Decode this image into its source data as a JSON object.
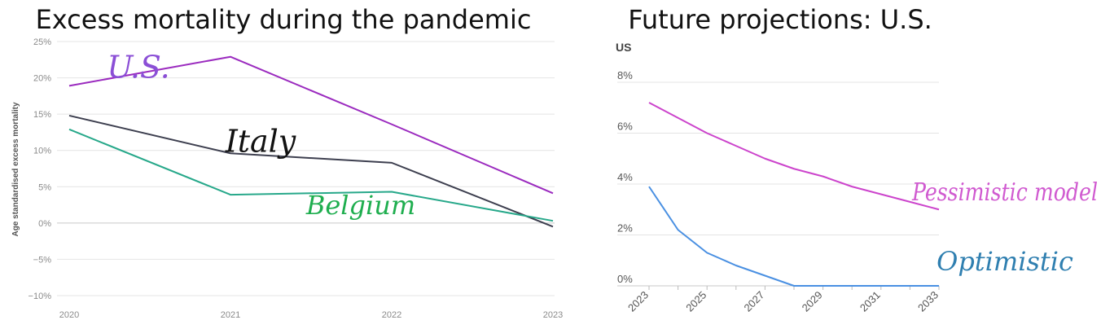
{
  "chart_data": [
    {
      "type": "line",
      "title": "Excess mortality during the pandemic",
      "ylabel": "Age standardised excess mortality",
      "x": [
        "2020",
        "2021",
        "2022",
        "2023"
      ],
      "ylim": [
        -10,
        25
      ],
      "yticks": [
        25,
        20,
        15,
        10,
        5,
        0,
        -5,
        -10
      ],
      "ytick_labels": [
        "25%",
        "20%",
        "15%",
        "10%",
        "5%",
        "0%",
        "−5%",
        "−10%"
      ],
      "grid": true,
      "series": [
        {
          "name": "U.S.",
          "values": [
            18.9,
            22.9,
            13.6,
            4.1
          ],
          "color": "#9b2bbf",
          "label_color": "#8b4fd6"
        },
        {
          "name": "Italy",
          "values": [
            14.8,
            9.6,
            8.3,
            -0.5
          ],
          "color": "#3d3f4f",
          "label_color": "#111111"
        },
        {
          "name": "Belgium",
          "values": [
            12.9,
            3.9,
            4.3,
            0.3
          ],
          "color": "#27a88a",
          "label_color": "#1fae4f"
        }
      ]
    },
    {
      "type": "line",
      "title": "Future projections: U.S.",
      "panel_label": "US",
      "x": [
        2023,
        2024,
        2025,
        2026,
        2027,
        2028,
        2029,
        2030,
        2031,
        2032,
        2033
      ],
      "xtick_labels": [
        "2023",
        "2025",
        "2027",
        "2029",
        "2031",
        "2033"
      ],
      "ylim": [
        0,
        8
      ],
      "yticks": [
        8,
        6,
        4,
        2,
        0
      ],
      "ytick_labels": [
        "8%",
        "6%",
        "4%",
        "2%",
        "0%"
      ],
      "grid": true,
      "series": [
        {
          "name": "Pessimistic model",
          "values": [
            7.2,
            6.6,
            6.0,
            5.5,
            5.0,
            4.6,
            4.3,
            3.9,
            3.6,
            3.3,
            3.0
          ],
          "color": "#cc44cc",
          "label_color": "#d05ad0"
        },
        {
          "name": "Optimistic",
          "values": [
            3.9,
            2.2,
            1.3,
            0.8,
            0.4,
            0.0,
            0.0,
            0.0,
            0.0,
            0.0,
            0.0
          ],
          "color": "#4a90e2",
          "label_color": "#2f7fb0"
        }
      ]
    }
  ]
}
